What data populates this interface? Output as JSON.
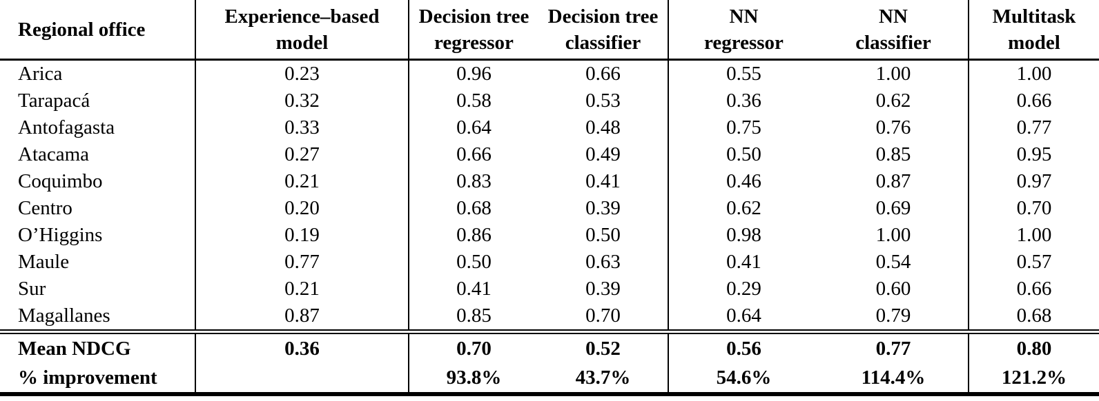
{
  "table": {
    "header": {
      "columns": [
        {
          "line1": "Regional office",
          "line2": ""
        },
        {
          "line1": "Experience–based",
          "line2": "model"
        },
        {
          "line1": "Decision tree",
          "line2": "regressor"
        },
        {
          "line1": "Decision tree",
          "line2": "classifier"
        },
        {
          "line1": "NN",
          "line2": "regressor"
        },
        {
          "line1": "NN",
          "line2": "classifier"
        },
        {
          "line1": "Multitask",
          "line2": "model"
        }
      ]
    },
    "rows": [
      {
        "office": "Arica",
        "values": [
          "0.23",
          "0.96",
          "0.66",
          "0.55",
          "1.00",
          "1.00"
        ]
      },
      {
        "office": "Tarapacá",
        "values": [
          "0.32",
          "0.58",
          "0.53",
          "0.36",
          "0.62",
          "0.66"
        ]
      },
      {
        "office": "Antofagasta",
        "values": [
          "0.33",
          "0.64",
          "0.48",
          "0.75",
          "0.76",
          "0.77"
        ]
      },
      {
        "office": "Atacama",
        "values": [
          "0.27",
          "0.66",
          "0.49",
          "0.50",
          "0.85",
          "0.95"
        ]
      },
      {
        "office": "Coquimbo",
        "values": [
          "0.21",
          "0.83",
          "0.41",
          "0.46",
          "0.87",
          "0.97"
        ]
      },
      {
        "office": "Centro",
        "values": [
          "0.20",
          "0.68",
          "0.39",
          "0.62",
          "0.69",
          "0.70"
        ]
      },
      {
        "office": "O’Higgins",
        "values": [
          "0.19",
          "0.86",
          "0.50",
          "0.98",
          "1.00",
          "1.00"
        ]
      },
      {
        "office": "Maule",
        "values": [
          "0.77",
          "0.50",
          "0.63",
          "0.41",
          "0.54",
          "0.57"
        ]
      },
      {
        "office": "Sur",
        "values": [
          "0.21",
          "0.41",
          "0.39",
          "0.29",
          "0.60",
          "0.66"
        ]
      },
      {
        "office": "Magallanes",
        "values": [
          "0.87",
          "0.85",
          "0.70",
          "0.64",
          "0.79",
          "0.68"
        ]
      }
    ],
    "footer": [
      {
        "label": "Mean NDCG",
        "values": [
          "0.36",
          "0.70",
          "0.52",
          "0.56",
          "0.77",
          "0.80"
        ]
      },
      {
        "label": "% improvement",
        "values": [
          "",
          "93.8%",
          "43.7%",
          "54.6%",
          "114.4%",
          "121.2%"
        ]
      }
    ]
  },
  "chart_data": {
    "type": "table",
    "categories": [
      "Arica",
      "Tarapacá",
      "Antofagasta",
      "Atacama",
      "Coquimbo",
      "Centro",
      "O’Higgins",
      "Maule",
      "Sur",
      "Magallanes"
    ],
    "series": [
      {
        "name": "Experience–based model",
        "values": [
          0.23,
          0.32,
          0.33,
          0.27,
          0.21,
          0.2,
          0.19,
          0.77,
          0.21,
          0.87
        ],
        "mean_ndcg": 0.36,
        "pct_improvement": null
      },
      {
        "name": "Decision tree regressor",
        "values": [
          0.96,
          0.58,
          0.64,
          0.66,
          0.83,
          0.68,
          0.86,
          0.5,
          0.41,
          0.85
        ],
        "mean_ndcg": 0.7,
        "pct_improvement": "93.8%"
      },
      {
        "name": "Decision tree classifier",
        "values": [
          0.66,
          0.53,
          0.48,
          0.49,
          0.41,
          0.39,
          0.5,
          0.63,
          0.39,
          0.7
        ],
        "mean_ndcg": 0.52,
        "pct_improvement": "43.7%"
      },
      {
        "name": "NN regressor",
        "values": [
          0.55,
          0.36,
          0.75,
          0.5,
          0.46,
          0.62,
          0.98,
          0.41,
          0.29,
          0.64
        ],
        "mean_ndcg": 0.56,
        "pct_improvement": "54.6%"
      },
      {
        "name": "NN classifier",
        "values": [
          1.0,
          0.62,
          0.76,
          0.85,
          0.87,
          0.69,
          1.0,
          0.54,
          0.6,
          0.79
        ],
        "mean_ndcg": 0.77,
        "pct_improvement": "114.4%"
      },
      {
        "name": "Multitask model",
        "values": [
          1.0,
          0.66,
          0.77,
          0.95,
          0.97,
          0.7,
          1.0,
          0.57,
          0.66,
          0.68
        ],
        "mean_ndcg": 0.8,
        "pct_improvement": "121.2%"
      }
    ],
    "value_range": [
      0,
      1
    ],
    "notes": "NDCG scores per regional office for six models; bold footer gives column means and percent improvement over the experience-based model."
  }
}
